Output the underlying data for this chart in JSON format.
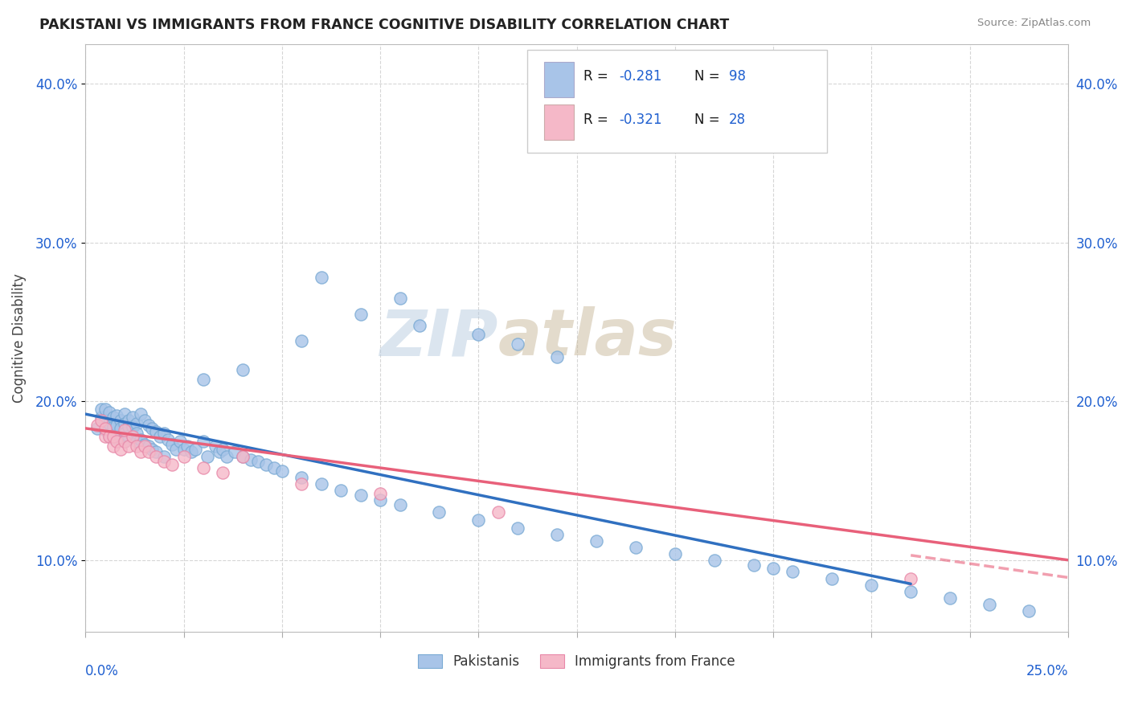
{
  "title": "PAKISTANI VS IMMIGRANTS FROM FRANCE COGNITIVE DISABILITY CORRELATION CHART",
  "source": "Source: ZipAtlas.com",
  "ylabel": "Cognitive Disability",
  "xlim": [
    0.0,
    0.25
  ],
  "ylim": [
    0.055,
    0.425
  ],
  "yticks": [
    0.1,
    0.2,
    0.3,
    0.4
  ],
  "ytick_labels": [
    "10.0%",
    "20.0%",
    "30.0%",
    "40.0%"
  ],
  "pakistani_color": "#a8c4e8",
  "pakistani_edge": "#7aaad4",
  "france_color": "#f5b8c8",
  "france_edge": "#e888a8",
  "trend_pak_color": "#3070c0",
  "trend_fra_color": "#e8607a",
  "background_color": "#ffffff",
  "grid_color": "#cccccc",
  "watermark_zip": "ZIP",
  "watermark_atlas": "atlas",
  "watermark_color_zip": "#c5d5e8",
  "watermark_color_atlas": "#d5c8b8",
  "legend_r1_text": "R = -0.281",
  "legend_n1_text": "N = 98",
  "legend_r2_text": "R = -0.321",
  "legend_n2_text": "N = 28",
  "legend_text_color": "#1a1a1a",
  "legend_num_color": "#2060d0",
  "pak_x": [
    0.003,
    0.004,
    0.004,
    0.005,
    0.005,
    0.005,
    0.006,
    0.006,
    0.006,
    0.007,
    0.007,
    0.007,
    0.008,
    0.008,
    0.008,
    0.009,
    0.009,
    0.009,
    0.01,
    0.01,
    0.01,
    0.01,
    0.011,
    0.011,
    0.011,
    0.012,
    0.012,
    0.012,
    0.013,
    0.013,
    0.013,
    0.014,
    0.014,
    0.015,
    0.015,
    0.016,
    0.016,
    0.017,
    0.017,
    0.018,
    0.018,
    0.019,
    0.02,
    0.02,
    0.021,
    0.022,
    0.023,
    0.024,
    0.025,
    0.026,
    0.027,
    0.028,
    0.03,
    0.031,
    0.033,
    0.034,
    0.035,
    0.036,
    0.038,
    0.04,
    0.042,
    0.044,
    0.046,
    0.048,
    0.05,
    0.055,
    0.06,
    0.065,
    0.07,
    0.075,
    0.08,
    0.09,
    0.1,
    0.11,
    0.12,
    0.13,
    0.14,
    0.15,
    0.16,
    0.17,
    0.175,
    0.18,
    0.19,
    0.2,
    0.21,
    0.22,
    0.23,
    0.24,
    0.03,
    0.04,
    0.055,
    0.07,
    0.085,
    0.1,
    0.11,
    0.12,
    0.06,
    0.08
  ],
  "pak_y": [
    0.183,
    0.19,
    0.195,
    0.195,
    0.188,
    0.182,
    0.193,
    0.186,
    0.178,
    0.19,
    0.184,
    0.177,
    0.191,
    0.185,
    0.178,
    0.188,
    0.183,
    0.177,
    0.192,
    0.186,
    0.18,
    0.175,
    0.188,
    0.184,
    0.178,
    0.19,
    0.184,
    0.178,
    0.186,
    0.18,
    0.175,
    0.192,
    0.176,
    0.188,
    0.173,
    0.185,
    0.172,
    0.183,
    0.17,
    0.181,
    0.168,
    0.178,
    0.18,
    0.165,
    0.176,
    0.173,
    0.17,
    0.175,
    0.17,
    0.172,
    0.168,
    0.17,
    0.175,
    0.165,
    0.172,
    0.168,
    0.17,
    0.165,
    0.168,
    0.165,
    0.163,
    0.162,
    0.16,
    0.158,
    0.156,
    0.152,
    0.148,
    0.144,
    0.141,
    0.138,
    0.135,
    0.13,
    0.125,
    0.12,
    0.116,
    0.112,
    0.108,
    0.104,
    0.1,
    0.097,
    0.095,
    0.093,
    0.088,
    0.084,
    0.08,
    0.076,
    0.072,
    0.068,
    0.214,
    0.22,
    0.238,
    0.255,
    0.248,
    0.242,
    0.236,
    0.228,
    0.278,
    0.265
  ],
  "fra_x": [
    0.003,
    0.004,
    0.005,
    0.005,
    0.006,
    0.007,
    0.007,
    0.008,
    0.009,
    0.01,
    0.01,
    0.011,
    0.012,
    0.013,
    0.014,
    0.015,
    0.016,
    0.018,
    0.02,
    0.022,
    0.025,
    0.03,
    0.035,
    0.04,
    0.055,
    0.075,
    0.105,
    0.21
  ],
  "fra_y": [
    0.185,
    0.188,
    0.178,
    0.183,
    0.178,
    0.172,
    0.178,
    0.175,
    0.17,
    0.175,
    0.182,
    0.172,
    0.178,
    0.172,
    0.168,
    0.172,
    0.168,
    0.165,
    0.162,
    0.16,
    0.165,
    0.158,
    0.155,
    0.165,
    0.148,
    0.142,
    0.13,
    0.088
  ],
  "trend_pak_x0": 0.0,
  "trend_pak_y0": 0.192,
  "trend_pak_x1": 0.21,
  "trend_pak_y1": 0.085,
  "trend_fra_x0": 0.0,
  "trend_fra_y0": 0.183,
  "trend_fra_x1": 0.25,
  "trend_fra_y1": 0.1,
  "trend_fra_dash_x0": 0.21,
  "trend_fra_dash_y0": 0.103,
  "trend_fra_dash_x1": 0.25,
  "trend_fra_dash_y1": 0.089
}
